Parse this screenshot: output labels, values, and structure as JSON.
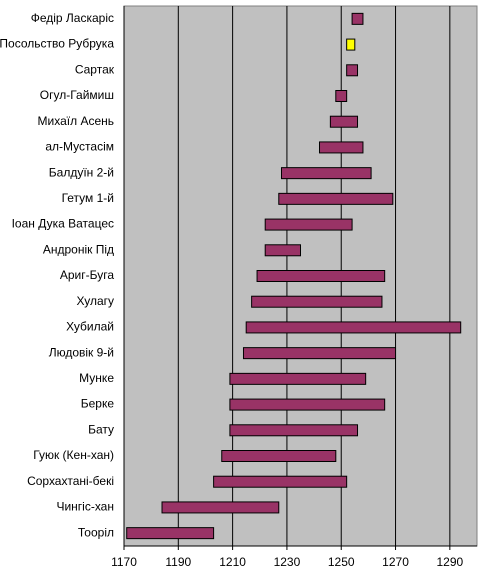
{
  "chart_data": {
    "type": "floating-bar",
    "categories": [
      "Федір Ласкаріс",
      "Посольство Рубрука",
      "Сартак",
      "Огул-Гаймиш",
      "Михаїл Асень",
      "ал-Мустасім",
      "Балдуїн 2-й",
      "Гетум 1-й",
      "Іоан Дука Ватацес",
      "Андронік Під",
      "Ариг-Буга",
      "Хулагу",
      "Хубилай",
      "Людовік 9-й",
      "Мунке",
      "Берке",
      "Бату",
      "Гуюк (Кен-хан)",
      "Сорхахтані-бекі",
      "Чингіс-хан",
      "Тооріл"
    ],
    "starts": [
      1254,
      1252,
      1252,
      1248,
      1246,
      1242,
      1228,
      1227,
      1222,
      1222,
      1219,
      1217,
      1215,
      1214,
      1209,
      1209,
      1209,
      1206,
      1203,
      1184,
      1171
    ],
    "ends": [
      1258,
      1255,
      1256,
      1252,
      1256,
      1258,
      1261,
      1269,
      1254,
      1235,
      1266,
      1265,
      1294,
      1270,
      1259,
      1266,
      1256,
      1248,
      1252,
      1227,
      1203
    ],
    "colors": [
      "#993366",
      "#ffff00",
      "#993366",
      "#993366",
      "#993366",
      "#993366",
      "#993366",
      "#993366",
      "#993366",
      "#993366",
      "#993366",
      "#993366",
      "#993366",
      "#993366",
      "#993366",
      "#993366",
      "#993366",
      "#993366",
      "#993366",
      "#993366",
      "#993366"
    ],
    "xlim": [
      1170,
      1300
    ],
    "xticks": [
      1170,
      1190,
      1210,
      1230,
      1250,
      1270,
      1290
    ],
    "grid": true
  }
}
